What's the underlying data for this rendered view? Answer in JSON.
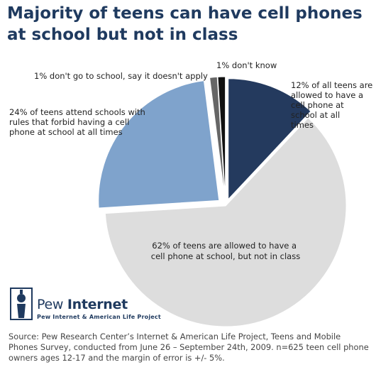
{
  "chart_data": {
    "type": "pie",
    "title": "Majority of teens can have cell phones at school but not in class",
    "slices": [
      {
        "value": 12,
        "label": "12% of all teens are allowed to have a cell phone at school at all times",
        "color": "#243a5e"
      },
      {
        "value": 62,
        "label": "62% of teens are allowed to have a cell phone at school, but not in class",
        "color": "#dddddd"
      },
      {
        "value": 24,
        "label": "24% of teens attend schools with rules that forbid having a cell phone at school at all times",
        "color": "#7fa3cc"
      },
      {
        "value": 1,
        "label": "1% don't go to school, say it doesn't apply",
        "color": "#666666"
      },
      {
        "value": 1,
        "label": "1% don't know",
        "color": "#111111"
      }
    ]
  },
  "logo": {
    "name_regular": "Pew",
    "name_bold": "Internet",
    "subtitle": "Pew Internet & American Life Project"
  },
  "source": "Source: Pew Research Center’s Internet & American Life Project, Teens and Mobile Phones Survey, conducted from June 26 – September 24th, 2009. n=625 teen cell phone owners ages 12-17 and the margin of error is +/- 5%."
}
